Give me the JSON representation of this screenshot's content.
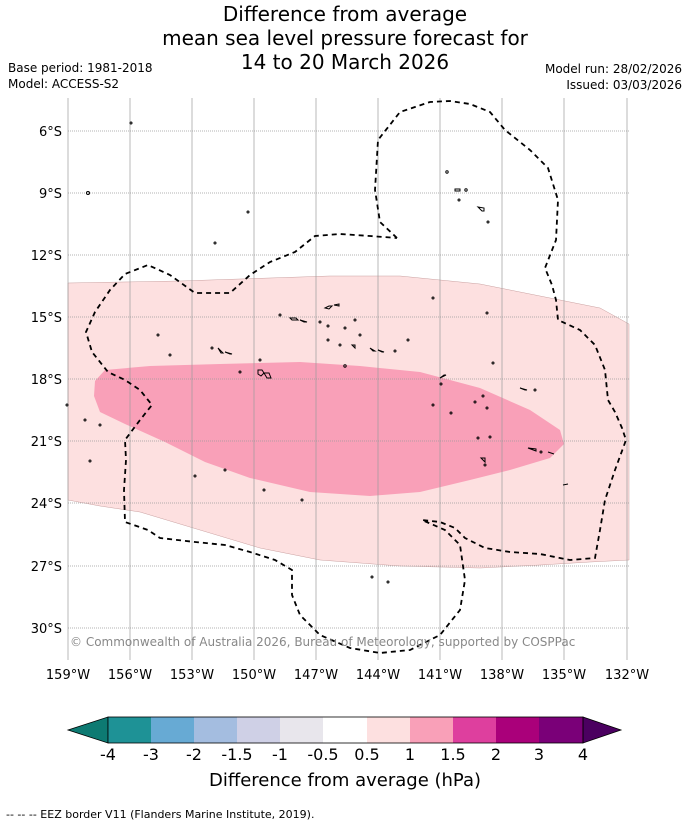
{
  "title": {
    "line1": "Difference from average",
    "line2": "mean sea level pressure forecast for",
    "line3": "14 to 20 March 2026"
  },
  "meta": {
    "base_period": "Base period: 1981-2018",
    "model": "Model: ACCESS-S2",
    "model_run": "Model run: 28/02/2026",
    "issued": "Issued: 03/03/2026"
  },
  "map": {
    "lat_labels": [
      "6°S",
      "9°S",
      "12°S",
      "15°S",
      "18°S",
      "21°S",
      "24°S",
      "27°S",
      "30°S"
    ],
    "lon_labels": [
      "159°W",
      "156°W",
      "153°W",
      "150°W",
      "147°W",
      "144°W",
      "141°W",
      "138°W",
      "135°W",
      "132°W"
    ],
    "copyright": "© Commonwealth of Australia 2026, Bureau of Meteorology, supported by COSPPac",
    "fill_colors": {
      "band_05_1": "#fde0e0",
      "band_1_15": "#f9a0b8"
    }
  },
  "colorbar": {
    "labels": [
      "-4",
      "-3",
      "-2",
      "-1.5",
      "-1",
      "-0.5",
      "0.5",
      "1",
      "1.5",
      "2",
      "3",
      "4"
    ],
    "colors": [
      "#0d7a72",
      "#1e9296",
      "#67aad4",
      "#a4bde0",
      "#cfd0e6",
      "#e8e6ec",
      "#ffffff",
      "#fde0e0",
      "#f9a0b8",
      "#de3f9e",
      "#aa007a",
      "#7a0078",
      "#4b0060"
    ],
    "title": "Difference from average (hPa)"
  },
  "footer": "-- -- -- EEZ border V11 (Flanders Marine Institute, 2019)."
}
